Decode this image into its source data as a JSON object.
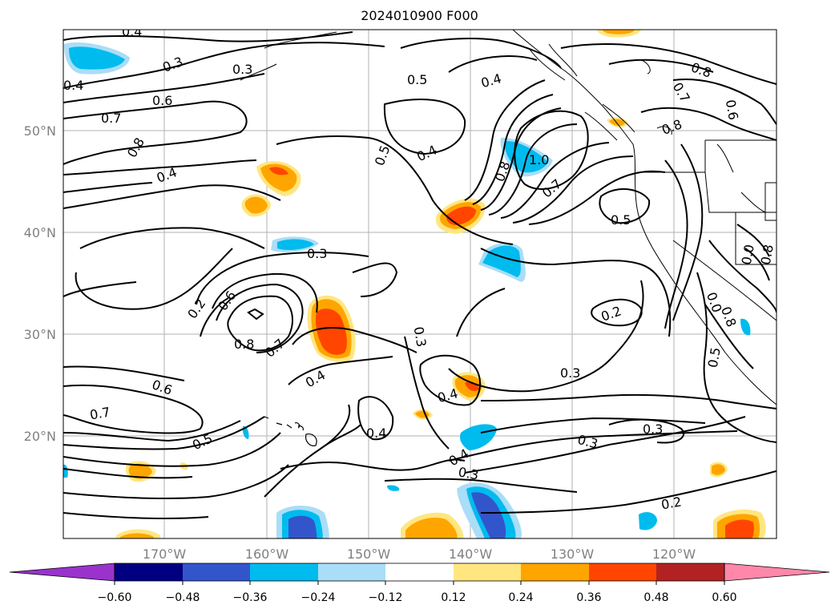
{
  "title": "2024010900 F000",
  "lat_labels": [
    "50°N",
    "40°N",
    "30°N",
    "20°N"
  ],
  "lon_labels": [
    "170°W",
    "160°W",
    "150°W",
    "140°W",
    "130°W",
    "120°W"
  ],
  "contour_labels": [
    "0.4",
    "0.3",
    "0.3",
    "0.4",
    "0.6",
    "0.7",
    "0.8",
    "0.4",
    "0.5",
    "0.4",
    "0.5",
    "0.4",
    "0.8",
    "0.7",
    "0.6",
    "0.8",
    "0.8",
    "1.0",
    "0.7",
    "0.5",
    "0.3",
    "0.2",
    "0.6",
    "0.8",
    "0.7",
    "0.6",
    "0.7",
    "0.5",
    "0.4",
    "0.3",
    "0.4",
    "0.4",
    "0.3",
    "0.3",
    "0.2",
    "0.3",
    "0.3",
    "0.4",
    "0.2",
    "0.5",
    "0.0",
    "0.8",
    "0.0",
    "0.8"
  ],
  "colorbar": {
    "colors": [
      "#9933cc",
      "#000080",
      "#3355cc",
      "#00bbee",
      "#aaddf7",
      "#ffffff",
      "#ffe680",
      "#ffa500",
      "#ff4500",
      "#b22222",
      "#ff88aa"
    ],
    "tick_labels": [
      "−0.60",
      "−0.48",
      "−0.36",
      "−0.24",
      "−0.12",
      "0.12",
      "0.24",
      "0.36",
      "0.48",
      "0.60"
    ]
  },
  "fill_colors": {
    "warm1": "#ffe680",
    "warm2": "#ffa500",
    "warm3": "#ff4500",
    "cool1": "#aaddf7",
    "cool2": "#00bbee",
    "cool3": "#3355cc"
  }
}
